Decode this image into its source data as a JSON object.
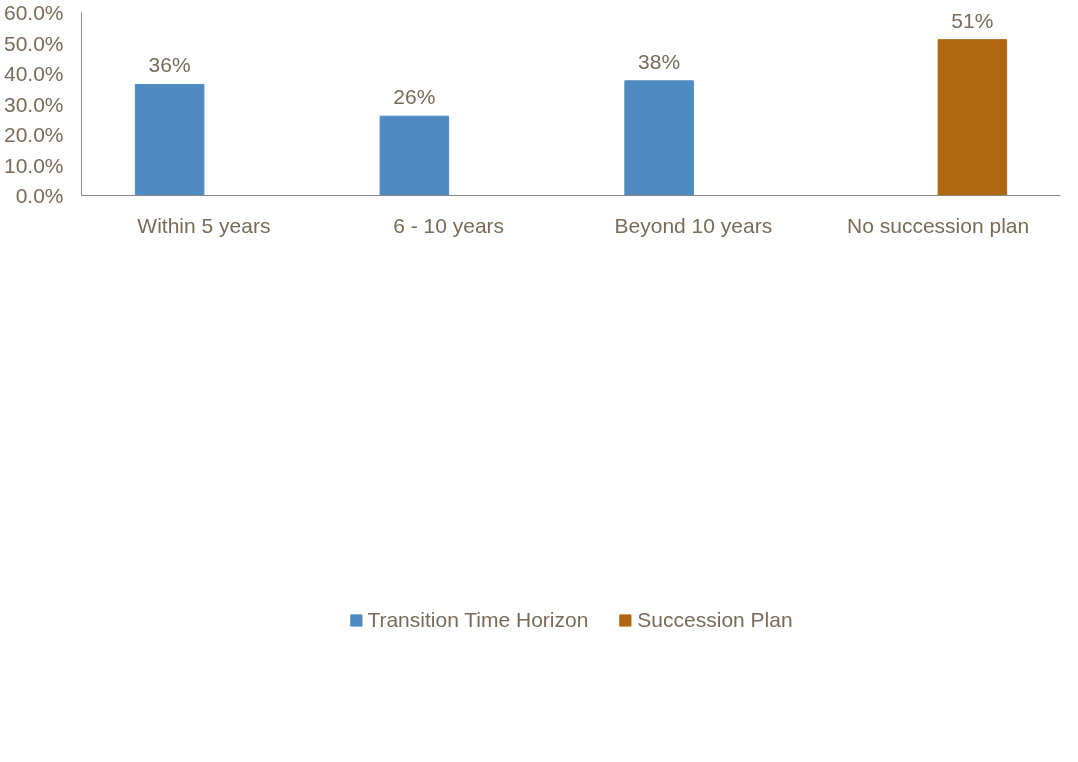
{
  "chart_data": {
    "type": "bar",
    "categories": [
      "Within 5 years",
      "6 - 10 years",
      "Beyond 10 years",
      "No succession plan"
    ],
    "series": [
      {
        "name": "Transition Time Horizon",
        "color": "#4f8bc0",
        "values": [
          36.4,
          26.0,
          37.6,
          null
        ],
        "value_labels": [
          "36%",
          "26%",
          "38%",
          null
        ]
      },
      {
        "name": "Succession Plan",
        "color": "#b0660f",
        "values": [
          null,
          null,
          null,
          51.1
        ],
        "value_labels": [
          null,
          null,
          null,
          "51%"
        ]
      }
    ],
    "ylim": [
      0,
      60
    ],
    "yticks": [
      {
        "value": 0,
        "label": "0.0%"
      },
      {
        "value": 10,
        "label": "10.0%"
      },
      {
        "value": 20,
        "label": "20.0%"
      },
      {
        "value": 30,
        "label": "30.0%"
      },
      {
        "value": 40,
        "label": "40.0%"
      },
      {
        "value": 50,
        "label": "50.0%"
      },
      {
        "value": 60,
        "label": "60.0%"
      }
    ],
    "grid": false,
    "legend": "bottom"
  }
}
